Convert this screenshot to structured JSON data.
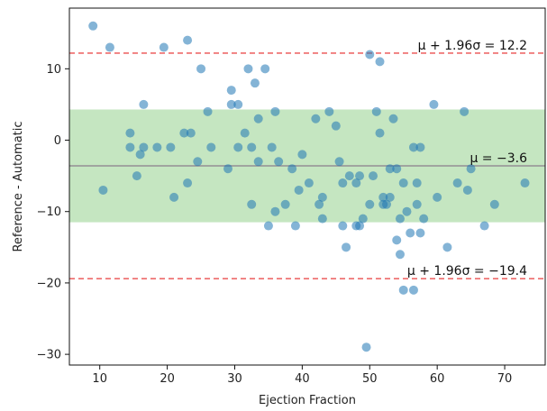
{
  "chart_data": {
    "type": "scatter",
    "xlabel": "Ejection Fraction",
    "ylabel": "Reference - Automatic",
    "xlim": [
      5.5,
      76
    ],
    "ylim": [
      -31.5,
      18.5
    ],
    "xticks": [
      10,
      20,
      30,
      40,
      50,
      60,
      70
    ],
    "yticks": [
      -30,
      -20,
      -10,
      0,
      10
    ],
    "grid": false,
    "colors": {
      "points": "#1f77b4",
      "band": "#a6d8a0",
      "mean_line": "#9a9a9a",
      "limit_line": "#ee6a6a"
    },
    "band": [
      -11.5,
      4.3
    ],
    "mean_line": {
      "y": -3.6,
      "label": "μ = −3.6"
    },
    "upper_limit": {
      "y": 12.2,
      "label": "μ + 1.96σ = 12.2"
    },
    "lower_limit": {
      "y": -19.4,
      "label": "μ + 1.96σ = −19.4"
    },
    "points": [
      [
        9,
        16
      ],
      [
        11.5,
        13
      ],
      [
        10.5,
        -7
      ],
      [
        14.5,
        1
      ],
      [
        14.5,
        -1
      ],
      [
        15.5,
        -5
      ],
      [
        16,
        -2
      ],
      [
        16.5,
        5
      ],
      [
        16.5,
        -1
      ],
      [
        18.5,
        -1
      ],
      [
        19.5,
        13
      ],
      [
        20.5,
        -1
      ],
      [
        21,
        -8
      ],
      [
        22.5,
        1
      ],
      [
        23,
        14
      ],
      [
        23,
        -6
      ],
      [
        23.5,
        1
      ],
      [
        24.5,
        -3
      ],
      [
        25,
        10
      ],
      [
        26,
        4
      ],
      [
        26.5,
        -1
      ],
      [
        29,
        -4
      ],
      [
        29.5,
        7
      ],
      [
        29.5,
        5
      ],
      [
        30.5,
        5
      ],
      [
        30.5,
        -1
      ],
      [
        31.5,
        1
      ],
      [
        32,
        10
      ],
      [
        32.5,
        -1
      ],
      [
        32.5,
        -9
      ],
      [
        33,
        8
      ],
      [
        33.5,
        3
      ],
      [
        33.5,
        -3
      ],
      [
        34.5,
        10
      ],
      [
        35,
        -12
      ],
      [
        35.5,
        -1
      ],
      [
        36,
        4
      ],
      [
        36,
        -10
      ],
      [
        36.5,
        -3
      ],
      [
        37.5,
        -9
      ],
      [
        38.5,
        -4
      ],
      [
        39,
        -12
      ],
      [
        39.5,
        -7
      ],
      [
        40,
        -2
      ],
      [
        41,
        -6
      ],
      [
        42,
        3
      ],
      [
        42.5,
        -9
      ],
      [
        43,
        -8
      ],
      [
        43,
        -11
      ],
      [
        44,
        4
      ],
      [
        45,
        2
      ],
      [
        45.5,
        -3
      ],
      [
        46,
        -6
      ],
      [
        46,
        -12
      ],
      [
        46.5,
        -15
      ],
      [
        47,
        -5
      ],
      [
        48,
        -6
      ],
      [
        48,
        -12
      ],
      [
        48.5,
        -5
      ],
      [
        48.5,
        -12
      ],
      [
        49,
        -11
      ],
      [
        49.5,
        -29
      ],
      [
        50,
        12
      ],
      [
        50,
        -9
      ],
      [
        50.5,
        -5
      ],
      [
        51,
        4
      ],
      [
        51.5,
        11
      ],
      [
        51.5,
        1
      ],
      [
        52,
        -8
      ],
      [
        52,
        -9
      ],
      [
        52.5,
        -9
      ],
      [
        53,
        -4
      ],
      [
        53,
        -8
      ],
      [
        53.5,
        3
      ],
      [
        54,
        -4
      ],
      [
        54,
        -14
      ],
      [
        54.5,
        -16
      ],
      [
        54.5,
        -11
      ],
      [
        55,
        -21
      ],
      [
        55,
        -6
      ],
      [
        55.5,
        -10
      ],
      [
        56,
        -13
      ],
      [
        56.5,
        -1
      ],
      [
        56.5,
        -21
      ],
      [
        57,
        -9
      ],
      [
        57,
        -6
      ],
      [
        57.5,
        -1
      ],
      [
        57.5,
        -13
      ],
      [
        58,
        -11
      ],
      [
        59.5,
        5
      ],
      [
        60,
        -8
      ],
      [
        61.5,
        -15
      ],
      [
        63,
        -6
      ],
      [
        64,
        4
      ],
      [
        64.5,
        -7
      ],
      [
        65,
        -4
      ],
      [
        67,
        -12
      ],
      [
        68.5,
        -9
      ],
      [
        73,
        -6
      ]
    ]
  }
}
